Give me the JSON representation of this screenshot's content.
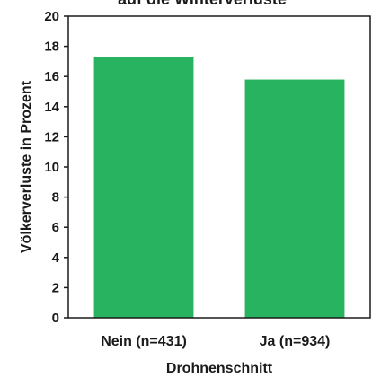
{
  "chart_data": {
    "type": "bar",
    "title": "auf die Winterverluste",
    "categories": [
      "Nein (n=431)",
      "Ja (n=934)"
    ],
    "values": [
      17.3,
      15.8
    ],
    "xlabel": "Drohnenschnitt",
    "ylabel": "Völkerverluste in Prozent",
    "ylim": [
      0,
      20
    ],
    "yticks": [
      0,
      2,
      4,
      6,
      8,
      10,
      12,
      14,
      16,
      18,
      20
    ],
    "grid": false,
    "bar_color": "#27b35f",
    "axis_color": "#1a1a1a"
  }
}
